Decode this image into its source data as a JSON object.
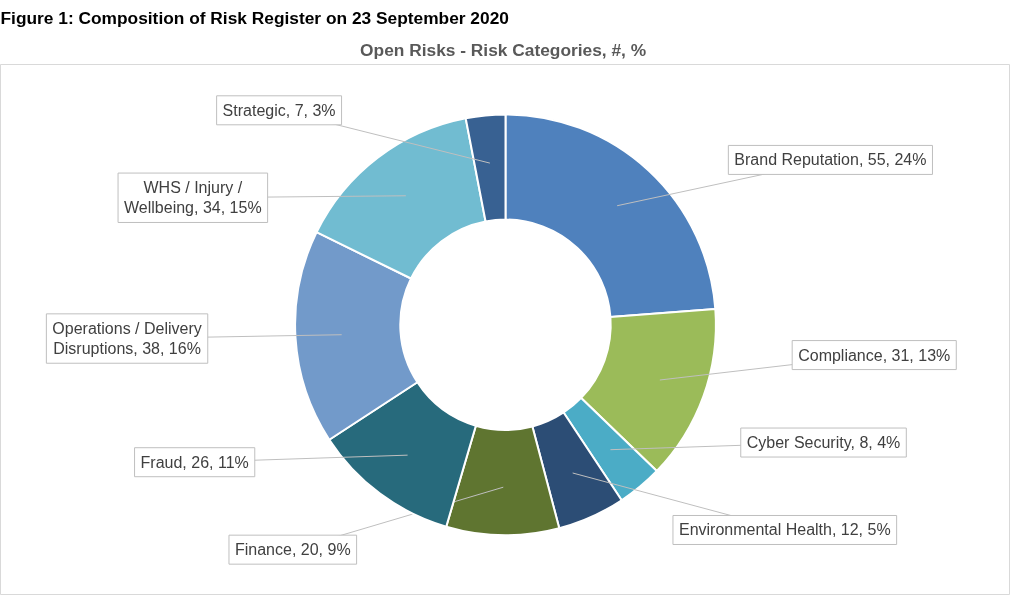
{
  "chart_data": {
    "type": "donut",
    "title": "Open Risks  - Risk Categories, #, %",
    "annotations": [
      "Figure 1: Composition of Risk Register on 23 September 2020"
    ],
    "categories": [
      "Brand Reputation",
      "Compliance",
      "Cyber Security",
      "Environmental Health",
      "Finance",
      "Fraud",
      "Operations / Delivery Disruptions",
      "WHS / Injury / Wellbeing",
      "Strategic"
    ],
    "values": [
      55,
      31,
      8,
      12,
      20,
      26,
      38,
      34,
      7
    ],
    "value_labels": [
      "55, 24%",
      "31, 13%",
      "8, 4%",
      "12, 5%",
      "20, 9%",
      "26, 11%",
      "38, 16%",
      "34, 15%",
      "7, 3%"
    ],
    "colors": [
      "#4f81bd",
      "#9bbb59",
      "#4bacc6",
      "#2c4d75",
      "#5f7530",
      "#276a7c",
      "#729aca",
      "#71bcd1",
      "#386192"
    ],
    "legend": false
  }
}
